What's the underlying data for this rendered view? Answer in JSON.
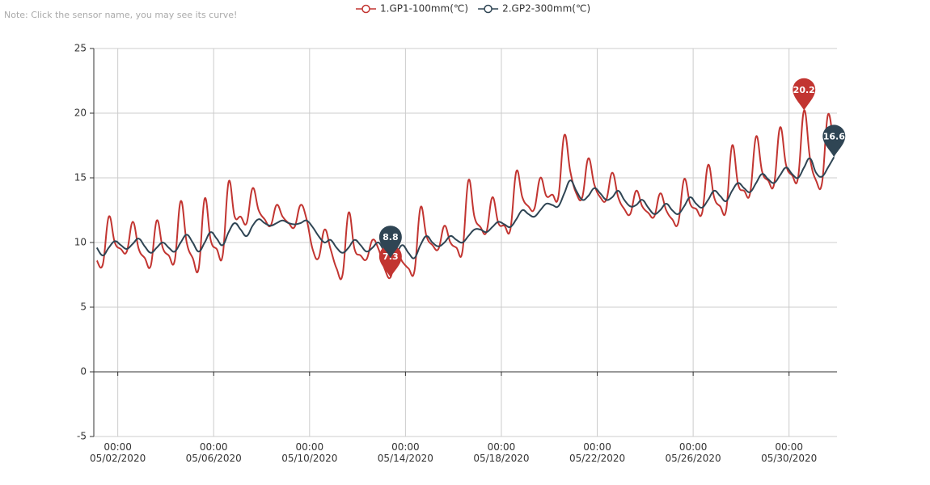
{
  "note": "Note: Click the sensor name, you may see its curve!",
  "chart_data": {
    "type": "line",
    "x": [
      "2020-05-01 03:00",
      "2020-05-01 09:00",
      "2020-05-01 15:00",
      "2020-05-01 21:00",
      "2020-05-02 03:00",
      "2020-05-02 09:00",
      "2020-05-02 15:00",
      "2020-05-02 21:00",
      "2020-05-03 03:00",
      "2020-05-03 09:00",
      "2020-05-03 15:00",
      "2020-05-03 21:00",
      "2020-05-04 03:00",
      "2020-05-04 09:00",
      "2020-05-04 15:00",
      "2020-05-04 21:00",
      "2020-05-05 03:00",
      "2020-05-05 09:00",
      "2020-05-05 15:00",
      "2020-05-05 21:00",
      "2020-05-06 03:00",
      "2020-05-06 09:00",
      "2020-05-06 15:00",
      "2020-05-06 21:00",
      "2020-05-07 03:00",
      "2020-05-07 09:00",
      "2020-05-07 15:00",
      "2020-05-07 21:00",
      "2020-05-08 03:00",
      "2020-05-08 09:00",
      "2020-05-08 15:00",
      "2020-05-08 21:00",
      "2020-05-09 03:00",
      "2020-05-09 09:00",
      "2020-05-09 15:00",
      "2020-05-09 21:00",
      "2020-05-10 03:00",
      "2020-05-10 09:00",
      "2020-05-10 15:00",
      "2020-05-10 21:00",
      "2020-05-11 03:00",
      "2020-05-11 09:00",
      "2020-05-11 15:00",
      "2020-05-11 21:00",
      "2020-05-12 03:00",
      "2020-05-12 09:00",
      "2020-05-12 15:00",
      "2020-05-12 21:00",
      "2020-05-13 03:00",
      "2020-05-13 09:00",
      "2020-05-13 15:00",
      "2020-05-13 21:00",
      "2020-05-14 03:00",
      "2020-05-14 09:00",
      "2020-05-14 15:00",
      "2020-05-14 21:00",
      "2020-05-15 03:00",
      "2020-05-15 09:00",
      "2020-05-15 15:00",
      "2020-05-15 21:00",
      "2020-05-16 03:00",
      "2020-05-16 09:00",
      "2020-05-16 15:00",
      "2020-05-16 21:00",
      "2020-05-17 03:00",
      "2020-05-17 09:00",
      "2020-05-17 15:00",
      "2020-05-17 21:00",
      "2020-05-18 03:00",
      "2020-05-18 09:00",
      "2020-05-18 15:00",
      "2020-05-18 21:00",
      "2020-05-19 03:00",
      "2020-05-19 09:00",
      "2020-05-19 15:00",
      "2020-05-19 21:00",
      "2020-05-20 03:00",
      "2020-05-20 09:00",
      "2020-05-20 15:00",
      "2020-05-20 21:00",
      "2020-05-21 03:00",
      "2020-05-21 09:00",
      "2020-05-21 15:00",
      "2020-05-21 21:00",
      "2020-05-22 03:00",
      "2020-05-22 09:00",
      "2020-05-22 15:00",
      "2020-05-22 21:00",
      "2020-05-23 03:00",
      "2020-05-23 09:00",
      "2020-05-23 15:00",
      "2020-05-23 21:00",
      "2020-05-24 03:00",
      "2020-05-24 09:00",
      "2020-05-24 15:00",
      "2020-05-24 21:00",
      "2020-05-25 03:00",
      "2020-05-25 09:00",
      "2020-05-25 15:00",
      "2020-05-25 21:00",
      "2020-05-26 03:00",
      "2020-05-26 09:00",
      "2020-05-26 15:00",
      "2020-05-26 21:00",
      "2020-05-27 03:00",
      "2020-05-27 09:00",
      "2020-05-27 15:00",
      "2020-05-27 21:00",
      "2020-05-28 03:00",
      "2020-05-28 09:00",
      "2020-05-28 15:00",
      "2020-05-28 21:00",
      "2020-05-29 03:00",
      "2020-05-29 09:00",
      "2020-05-29 15:00",
      "2020-05-29 21:00",
      "2020-05-30 03:00",
      "2020-05-30 09:00",
      "2020-05-30 15:00",
      "2020-05-30 21:00",
      "2020-05-31 03:00",
      "2020-05-31 09:00",
      "2020-05-31 15:00",
      "2020-05-31 21:00"
    ],
    "series": [
      {
        "name": "1.GP1-100mm(℃)",
        "color": "#c23531",
        "values": [
          8.6,
          8.3,
          12.0,
          10.0,
          9.5,
          9.3,
          11.6,
          9.5,
          8.8,
          8.2,
          11.7,
          9.6,
          9.0,
          8.6,
          13.2,
          10.0,
          8.8,
          8.0,
          13.4,
          10.2,
          9.5,
          9.0,
          14.7,
          12.0,
          12.0,
          11.5,
          14.2,
          12.5,
          11.8,
          11.3,
          12.9,
          12.0,
          11.5,
          11.2,
          12.9,
          11.8,
          9.5,
          8.8,
          11.0,
          9.5,
          8.0,
          7.5,
          12.3,
          9.5,
          9.0,
          8.7,
          10.2,
          9.5,
          8.0,
          7.3,
          9.2,
          8.5,
          8.0,
          7.8,
          12.7,
          10.5,
          9.8,
          9.5,
          11.3,
          10.0,
          9.6,
          9.3,
          14.8,
          12.0,
          11.2,
          10.8,
          13.5,
          11.5,
          11.3,
          11.0,
          15.5,
          13.5,
          12.8,
          12.6,
          15.0,
          13.6,
          13.7,
          13.5,
          18.3,
          15.5,
          13.8,
          13.5,
          16.5,
          14.5,
          13.5,
          13.3,
          15.4,
          13.5,
          12.6,
          12.2,
          14.0,
          12.8,
          12.3,
          12.0,
          13.8,
          12.5,
          11.8,
          11.5,
          14.9,
          13.0,
          12.6,
          12.3,
          16.0,
          13.5,
          12.8,
          12.5,
          17.5,
          14.5,
          14.0,
          13.8,
          18.2,
          15.5,
          14.8,
          14.5,
          18.9,
          16.0,
          15.2,
          15.0,
          20.2,
          16.5,
          14.8,
          14.6,
          19.9,
          17.0
        ],
        "mark_points": [
          {
            "x": "2020-05-30 15:00",
            "value": 20.2
          },
          {
            "x": "2020-05-13 09:00",
            "value": 7.3
          }
        ]
      },
      {
        "name": "2.GP2-300mm(℃)",
        "color": "#2f4554",
        "values": [
          9.6,
          9.0,
          9.6,
          10.1,
          9.8,
          9.5,
          9.9,
          10.3,
          9.7,
          9.2,
          9.6,
          10.0,
          9.6,
          9.3,
          10.0,
          10.6,
          10.0,
          9.3,
          10.0,
          10.8,
          10.3,
          9.8,
          10.8,
          11.5,
          11.0,
          10.5,
          11.3,
          11.8,
          11.5,
          11.3,
          11.5,
          11.7,
          11.5,
          11.4,
          11.5,
          11.7,
          11.2,
          10.5,
          10.0,
          10.2,
          9.6,
          9.2,
          9.6,
          10.2,
          9.8,
          9.3,
          9.6,
          10.0,
          9.3,
          8.8,
          9.2,
          9.8,
          9.2,
          8.8,
          9.8,
          10.5,
          10.0,
          9.7,
          10.0,
          10.5,
          10.2,
          10.0,
          10.5,
          11.0,
          11.0,
          10.8,
          11.2,
          11.6,
          11.4,
          11.2,
          11.8,
          12.5,
          12.2,
          12.0,
          12.5,
          13.0,
          12.9,
          12.8,
          13.8,
          14.8,
          14.0,
          13.3,
          13.6,
          14.2,
          13.8,
          13.3,
          13.5,
          14.0,
          13.3,
          12.8,
          12.9,
          13.3,
          12.7,
          12.2,
          12.5,
          13.0,
          12.5,
          12.2,
          12.8,
          13.5,
          13.0,
          12.7,
          13.3,
          14.0,
          13.6,
          13.2,
          14.0,
          14.6,
          14.2,
          13.9,
          14.6,
          15.3,
          14.9,
          14.6,
          15.2,
          15.8,
          15.3,
          15.0,
          15.8,
          16.5,
          15.4,
          15.1,
          15.8,
          16.6
        ],
        "mark_points": [
          {
            "x": "2020-05-31 21:00",
            "value": 16.6
          },
          {
            "x": "2020-05-13 09:00",
            "value": 8.8
          }
        ]
      }
    ],
    "xlim": [
      "2020-05-01 00:00",
      "2020-06-01 00:00"
    ],
    "xticks": [
      {
        "value": "2020-05-02 00:00",
        "label": "00:00\n05/02/2020"
      },
      {
        "value": "2020-05-06 00:00",
        "label": "00:00\n05/06/2020"
      },
      {
        "value": "2020-05-10 00:00",
        "label": "00:00\n05/10/2020"
      },
      {
        "value": "2020-05-14 00:00",
        "label": "00:00\n05/14/2020"
      },
      {
        "value": "2020-05-18 00:00",
        "label": "00:00\n05/18/2020"
      },
      {
        "value": "2020-05-22 00:00",
        "label": "00:00\n05/22/2020"
      },
      {
        "value": "2020-05-26 00:00",
        "label": "00:00\n05/26/2020"
      },
      {
        "value": "2020-05-30 00:00",
        "label": "00:00\n05/30/2020"
      }
    ],
    "ylim": [
      -5,
      25
    ],
    "yticks": [
      -5,
      0,
      5,
      10,
      15,
      20,
      25
    ],
    "grid": true
  }
}
